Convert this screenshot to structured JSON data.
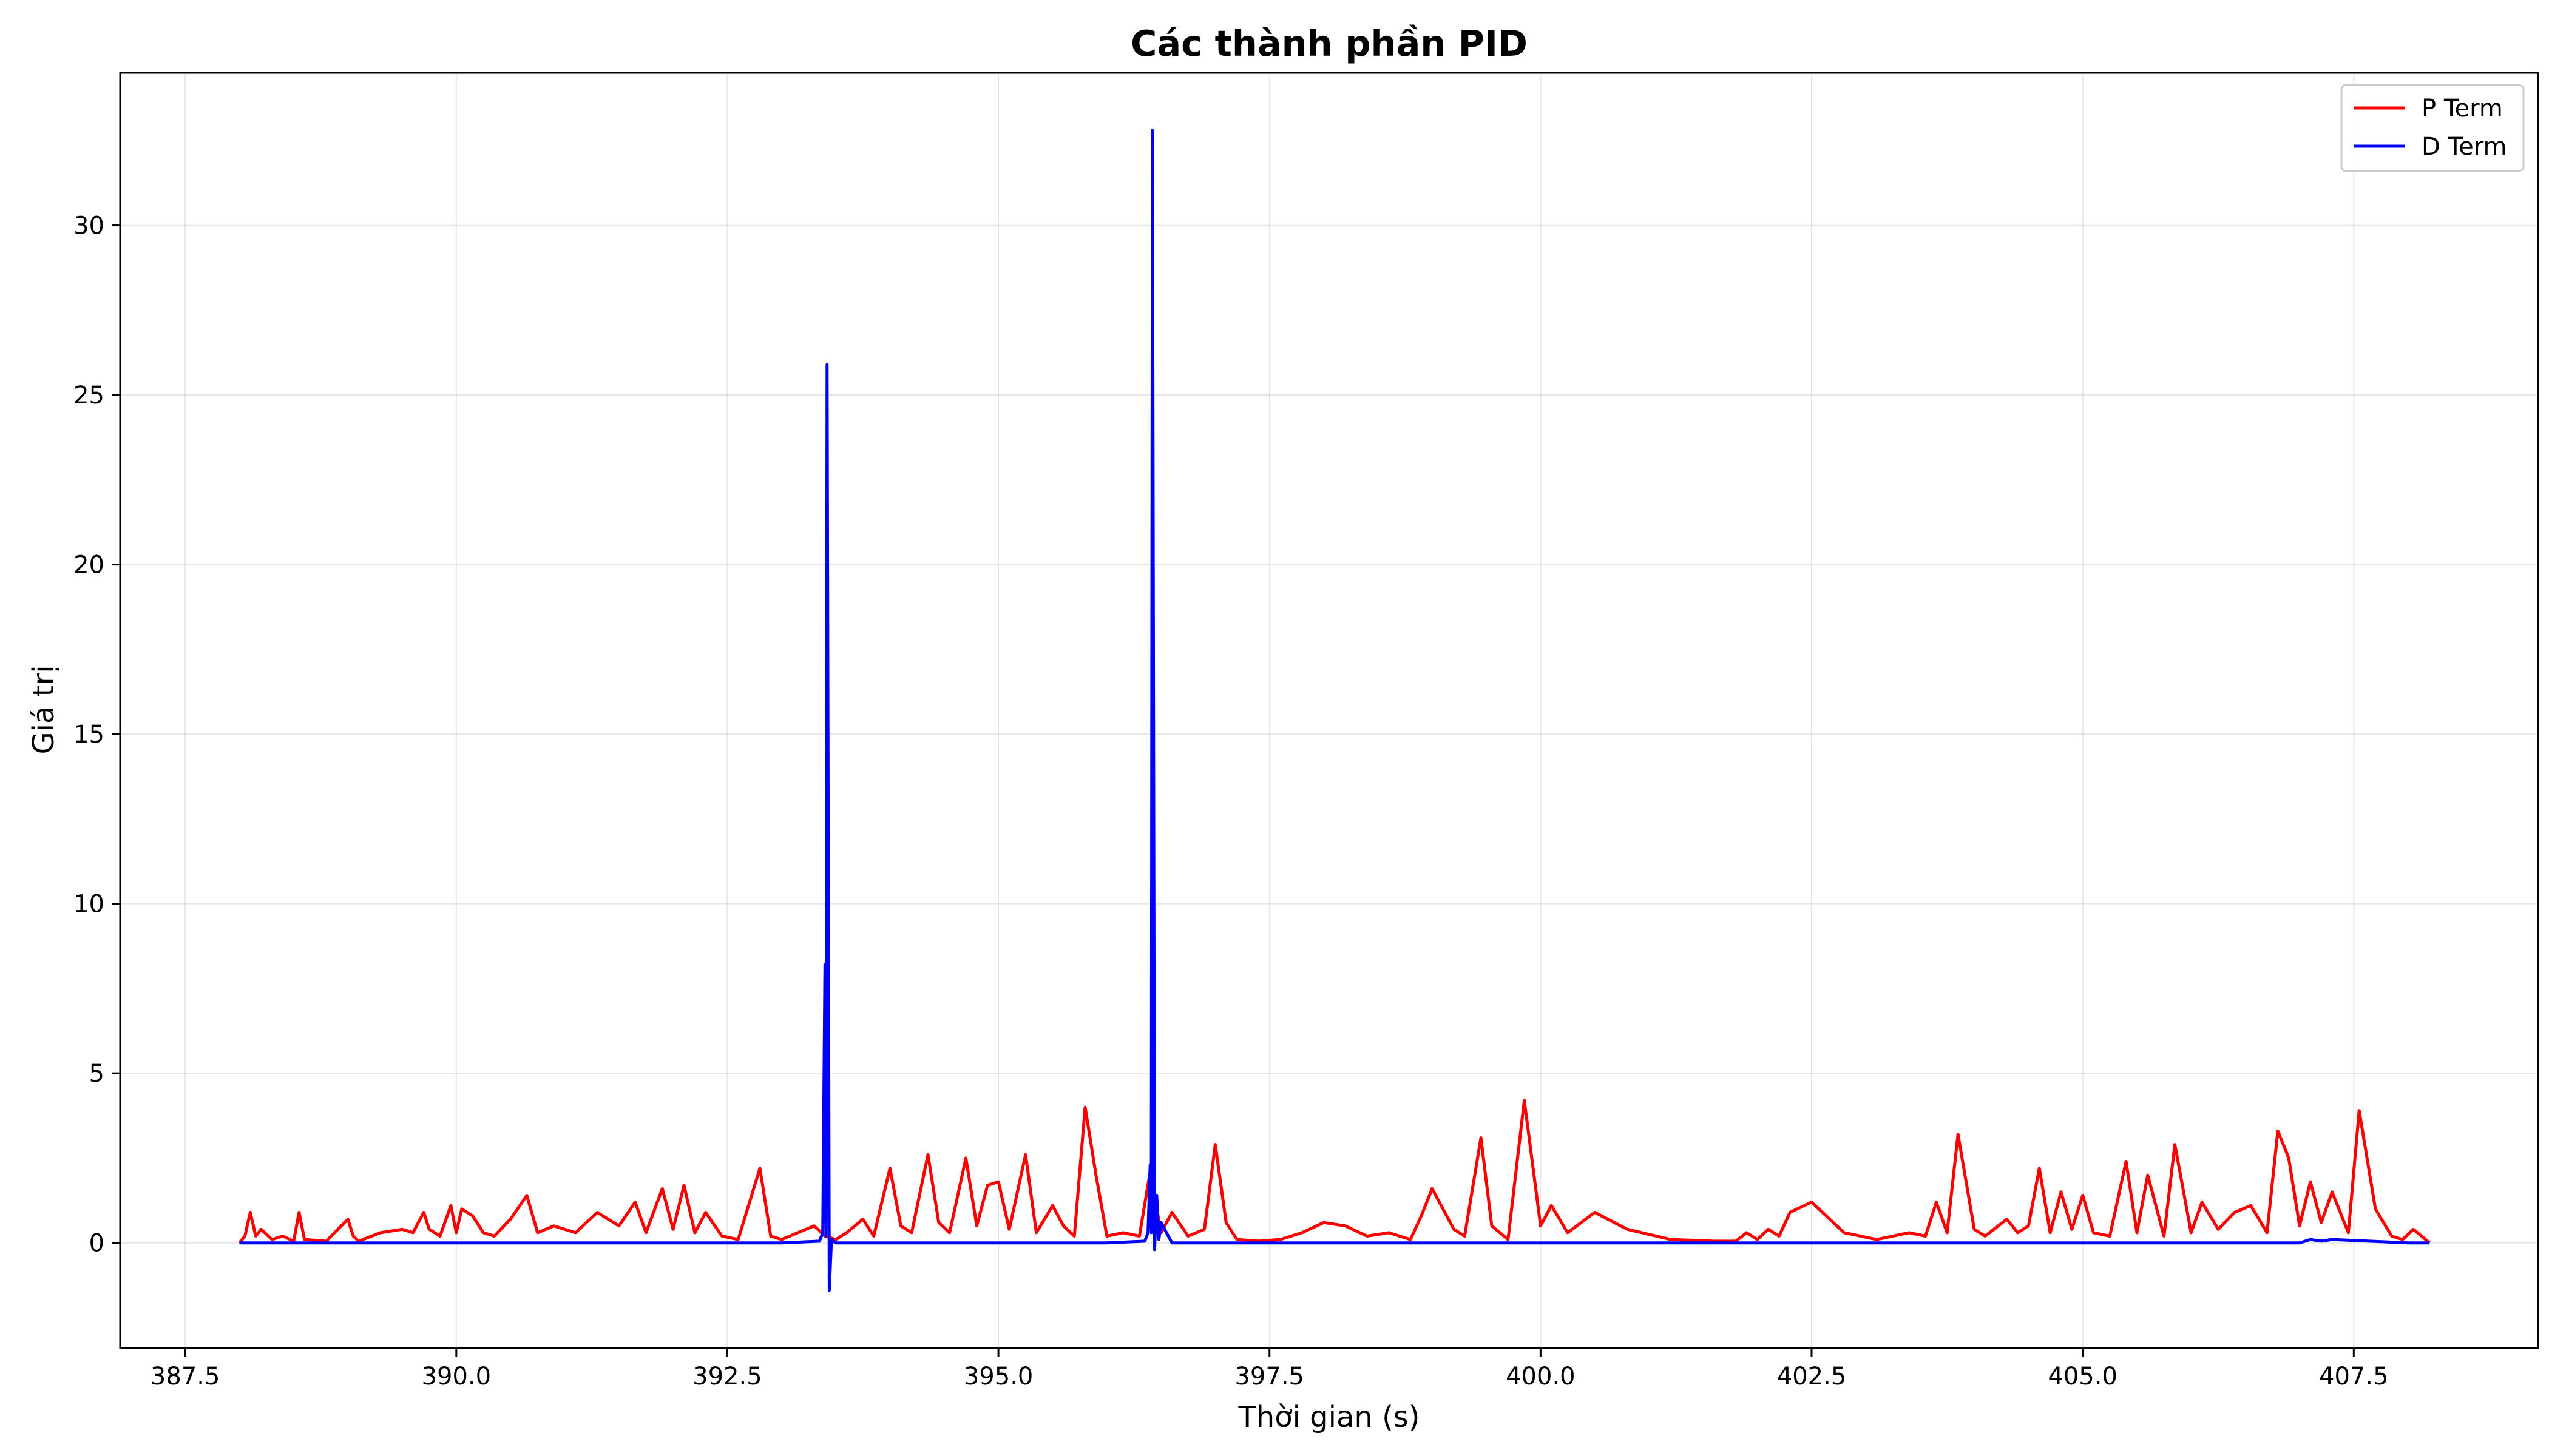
{
  "chart_data": {
    "type": "line",
    "title": "Các thành phần PID",
    "xlabel": "Thời gian (s)",
    "ylabel": "Giá trị",
    "xlim": [
      386.9,
      409.2
    ],
    "ylim": [
      -3.1,
      34.5
    ],
    "xticks": [
      387.5,
      390.0,
      392.5,
      395.0,
      397.5,
      400.0,
      402.5,
      405.0,
      407.5
    ],
    "xtick_labels": [
      "387.5",
      "390.0",
      "392.5",
      "395.0",
      "397.5",
      "400.0",
      "402.5",
      "405.0",
      "407.5"
    ],
    "yticks": [
      0,
      5,
      10,
      15,
      20,
      25,
      30
    ],
    "ytick_labels": [
      "0",
      "5",
      "10",
      "15",
      "20",
      "25",
      "30"
    ],
    "grid": true,
    "legend_position": "top-right",
    "series": [
      {
        "name": "P Term",
        "color": "#ff0000",
        "x": [
          388.0,
          388.05,
          388.1,
          388.15,
          388.2,
          388.3,
          388.4,
          388.5,
          388.55,
          388.6,
          388.8,
          389.0,
          389.05,
          389.1,
          389.3,
          389.5,
          389.6,
          389.7,
          389.75,
          389.85,
          389.95,
          390.0,
          390.05,
          390.15,
          390.25,
          390.35,
          390.5,
          390.65,
          390.75,
          390.9,
          391.0,
          391.1,
          391.3,
          391.5,
          391.65,
          391.75,
          391.9,
          392.0,
          392.1,
          392.2,
          392.3,
          392.45,
          392.6,
          392.8,
          392.9,
          393.0,
          393.15,
          393.3,
          393.4,
          393.5,
          393.6,
          393.75,
          393.85,
          394.0,
          394.1,
          394.2,
          394.35,
          394.45,
          394.55,
          394.7,
          394.8,
          394.9,
          395.0,
          395.1,
          395.25,
          395.35,
          395.5,
          395.6,
          395.7,
          395.8,
          395.9,
          396.0,
          396.15,
          396.3,
          396.4,
          396.5,
          396.6,
          396.75,
          396.9,
          397.0,
          397.1,
          397.2,
          397.4,
          397.6,
          397.8,
          398.0,
          398.2,
          398.4,
          398.6,
          398.8,
          398.9,
          399.0,
          399.2,
          399.3,
          399.45,
          399.55,
          399.7,
          399.85,
          400.0,
          400.1,
          400.25,
          400.5,
          400.8,
          401.2,
          401.6,
          401.8,
          401.9,
          402.0,
          402.1,
          402.2,
          402.3,
          402.5,
          402.8,
          403.1,
          403.4,
          403.55,
          403.65,
          403.75,
          403.85,
          404.0,
          404.1,
          404.3,
          404.4,
          404.5,
          404.6,
          404.7,
          404.8,
          404.9,
          405.0,
          405.1,
          405.25,
          405.4,
          405.5,
          405.6,
          405.75,
          405.85,
          406.0,
          406.1,
          406.25,
          406.4,
          406.55,
          406.7,
          406.8,
          406.9,
          407.0,
          407.1,
          407.2,
          407.3,
          407.45,
          407.55,
          407.7,
          407.85,
          407.95,
          408.05,
          408.2
        ],
        "values": [
          0.0,
          0.2,
          0.9,
          0.2,
          0.4,
          0.1,
          0.2,
          0.05,
          0.9,
          0.1,
          0.05,
          0.7,
          0.2,
          0.05,
          0.3,
          0.4,
          0.3,
          0.9,
          0.4,
          0.2,
          1.1,
          0.3,
          1.0,
          0.8,
          0.3,
          0.2,
          0.7,
          1.4,
          0.3,
          0.5,
          0.4,
          0.3,
          0.9,
          0.5,
          1.2,
          0.3,
          1.6,
          0.4,
          1.7,
          0.3,
          0.9,
          0.2,
          0.1,
          2.2,
          0.2,
          0.1,
          0.3,
          0.5,
          0.2,
          0.1,
          0.3,
          0.7,
          0.2,
          2.2,
          0.5,
          0.3,
          2.6,
          0.6,
          0.3,
          2.5,
          0.5,
          1.7,
          1.8,
          0.4,
          2.6,
          0.3,
          1.1,
          0.5,
          0.2,
          4.0,
          2.0,
          0.2,
          0.3,
          0.2,
          2.1,
          0.3,
          0.9,
          0.2,
          0.4,
          2.9,
          0.6,
          0.1,
          0.05,
          0.1,
          0.3,
          0.6,
          0.5,
          0.2,
          0.3,
          0.1,
          0.8,
          1.6,
          0.4,
          0.2,
          3.1,
          0.5,
          0.1,
          4.2,
          0.5,
          1.1,
          0.3,
          0.9,
          0.4,
          0.1,
          0.05,
          0.05,
          0.3,
          0.1,
          0.4,
          0.2,
          0.9,
          1.2,
          0.3,
          0.1,
          0.3,
          0.2,
          1.2,
          0.3,
          3.2,
          0.4,
          0.2,
          0.7,
          0.3,
          0.5,
          2.2,
          0.3,
          1.5,
          0.4,
          1.4,
          0.3,
          0.2,
          2.4,
          0.3,
          2.0,
          0.2,
          2.9,
          0.3,
          1.2,
          0.4,
          0.9,
          1.1,
          0.3,
          3.3,
          2.5,
          0.5,
          1.8,
          0.6,
          1.5,
          0.3,
          3.9,
          1.0,
          0.2,
          0.1,
          0.4,
          0.0
        ]
      },
      {
        "name": "D Term",
        "color": "#0000ff",
        "x": [
          388.0,
          389.0,
          390.0,
          391.0,
          392.0,
          393.0,
          393.35,
          393.38,
          393.4,
          393.41,
          393.42,
          393.44,
          393.46,
          393.5,
          394.0,
          395.0,
          396.0,
          396.35,
          396.38,
          396.4,
          396.41,
          396.42,
          396.44,
          396.46,
          396.48,
          396.5,
          396.6,
          397.0,
          398.0,
          399.0,
          400.0,
          401.0,
          402.0,
          403.0,
          404.0,
          405.0,
          406.0,
          407.0,
          407.1,
          407.2,
          407.3,
          408.0,
          408.2
        ],
        "values": [
          0.0,
          0.0,
          0.0,
          0.0,
          0.0,
          0.0,
          0.05,
          0.3,
          8.2,
          0.2,
          25.9,
          -1.4,
          0.1,
          0.0,
          0.0,
          0.0,
          0.0,
          0.05,
          0.3,
          2.3,
          0.3,
          32.8,
          -0.2,
          1.4,
          0.1,
          0.6,
          0.0,
          0.0,
          0.0,
          0.0,
          0.0,
          0.0,
          0.0,
          0.0,
          0.0,
          0.0,
          0.0,
          0.0,
          0.1,
          0.05,
          0.1,
          0.0,
          0.0
        ]
      }
    ]
  }
}
